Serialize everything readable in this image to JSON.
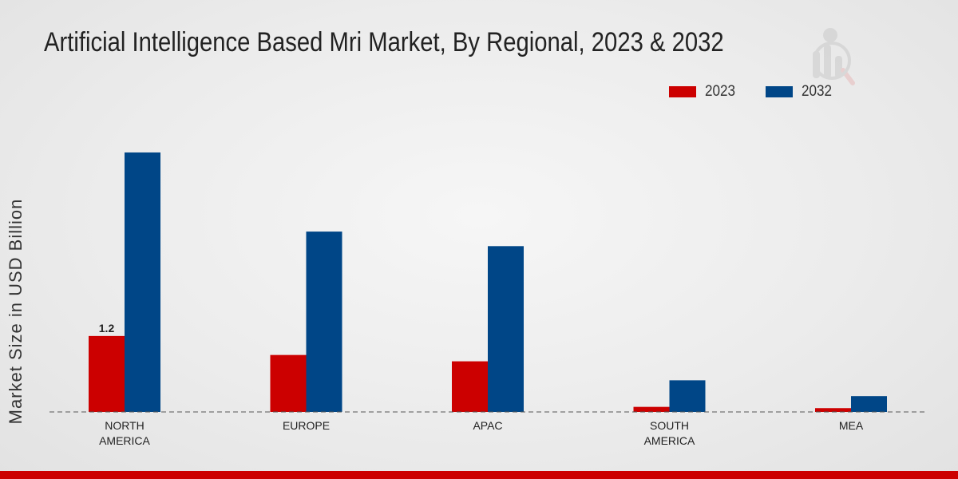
{
  "chart_data": {
    "type": "bar",
    "title": "Artificial Intelligence Based Mri Market, By Regional, 2023 & 2032",
    "xlabel": "",
    "ylabel": "Market Size in USD Billion",
    "categories": [
      "NORTH\nAMERICA",
      "EUROPE",
      "APAC",
      "SOUTH\nAMERICA",
      "MEA"
    ],
    "series": [
      {
        "name": "2023",
        "color": "#cc0000",
        "values": [
          1.2,
          0.9,
          0.8,
          0.08,
          0.06
        ]
      },
      {
        "name": "2032",
        "color": "#004687",
        "values": [
          4.1,
          2.85,
          2.62,
          0.5,
          0.25
        ]
      }
    ],
    "data_labels": [
      {
        "series": 0,
        "index": 0,
        "text": "1.2"
      }
    ],
    "ylim": [
      0,
      5.5
    ],
    "grid": false,
    "legend_position": "top-right"
  },
  "colors": {
    "bottom_bar": "#cc0000",
    "watermark": "#b8b8b8"
  }
}
